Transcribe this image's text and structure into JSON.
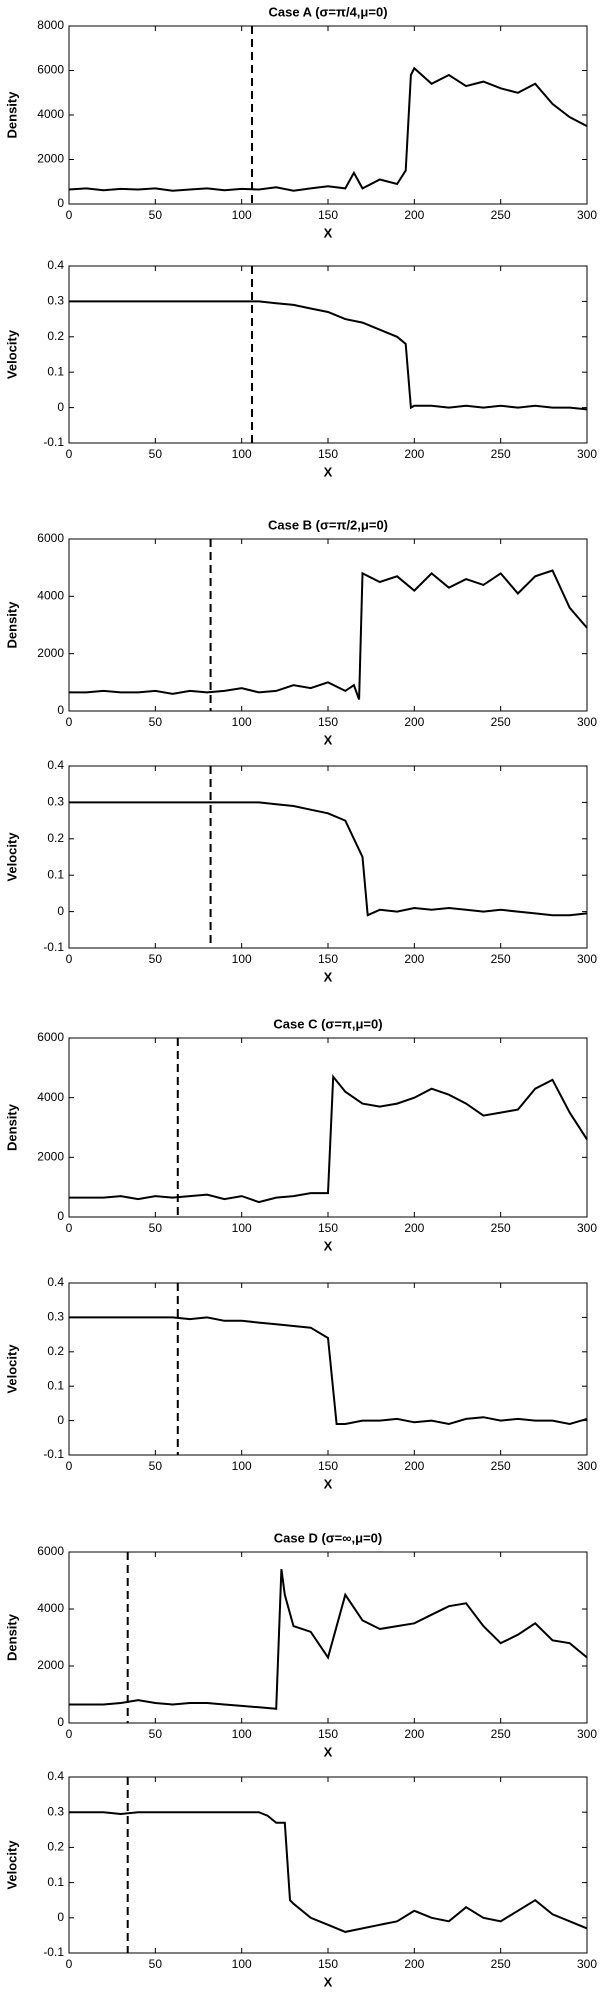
{
  "chart_data": [
    {
      "type": "line",
      "title": "Case A (σ=π/4,μ=0)",
      "xlabel": "X",
      "ylabel": "Density",
      "color": "#000000",
      "x": [
        0,
        10,
        20,
        30,
        40,
        50,
        60,
        70,
        80,
        90,
        100,
        110,
        120,
        130,
        140,
        150,
        160,
        165,
        170,
        180,
        190,
        195,
        198,
        200,
        210,
        220,
        230,
        240,
        250,
        260,
        270,
        280,
        290,
        300
      ],
      "values": [
        650,
        700,
        620,
        680,
        650,
        700,
        600,
        650,
        700,
        620,
        680,
        650,
        750,
        600,
        700,
        800,
        700,
        1400,
        700,
        1100,
        900,
        1500,
        5800,
        6100,
        5400,
        5800,
        5300,
        5500,
        5200,
        5000,
        5400,
        4500,
        3900,
        3500
      ],
      "vline_x": 106,
      "xlim": [
        0,
        300
      ],
      "xticks": [
        0,
        50,
        100,
        150,
        200,
        250,
        300
      ],
      "ylim": [
        0,
        8000
      ],
      "yticks": [
        0,
        2000,
        4000,
        6000,
        8000
      ]
    },
    {
      "type": "line",
      "xlabel": "X",
      "ylabel": "Velocity",
      "color": "#000000",
      "x": [
        0,
        10,
        20,
        30,
        40,
        50,
        60,
        70,
        80,
        90,
        100,
        110,
        120,
        130,
        140,
        150,
        160,
        170,
        180,
        190,
        195,
        198,
        200,
        210,
        220,
        230,
        240,
        250,
        260,
        270,
        280,
        290,
        300
      ],
      "values": [
        0.3,
        0.3,
        0.3,
        0.3,
        0.3,
        0.3,
        0.3,
        0.3,
        0.3,
        0.3,
        0.3,
        0.3,
        0.295,
        0.29,
        0.28,
        0.27,
        0.25,
        0.24,
        0.22,
        0.2,
        0.18,
        0.0,
        0.005,
        0.005,
        0.0,
        0.005,
        0.0,
        0.005,
        0.0,
        0.005,
        0.0,
        0.0,
        -0.005
      ],
      "vline_x": 106,
      "xlim": [
        0,
        300
      ],
      "xticks": [
        0,
        50,
        100,
        150,
        200,
        250,
        300
      ],
      "ylim": [
        -0.1,
        0.4
      ],
      "yticks": [
        -0.1,
        0,
        0.1,
        0.2,
        0.3,
        0.4
      ]
    },
    {
      "type": "line",
      "title": "Case B (σ=π/2,μ=0)",
      "xlabel": "X",
      "ylabel": "Density",
      "color": "#000000",
      "x": [
        0,
        10,
        20,
        30,
        40,
        50,
        60,
        70,
        80,
        90,
        100,
        110,
        120,
        130,
        140,
        150,
        160,
        165,
        168,
        170,
        180,
        190,
        200,
        210,
        220,
        230,
        240,
        250,
        260,
        270,
        280,
        290,
        300
      ],
      "values": [
        650,
        650,
        700,
        650,
        650,
        700,
        600,
        700,
        650,
        700,
        800,
        650,
        700,
        900,
        800,
        1000,
        700,
        900,
        400,
        4800,
        4500,
        4700,
        4200,
        4800,
        4300,
        4600,
        4400,
        4800,
        4100,
        4700,
        4900,
        3600,
        2900
      ],
      "vline_x": 82,
      "xlim": [
        0,
        300
      ],
      "xticks": [
        0,
        50,
        100,
        150,
        200,
        250,
        300
      ],
      "ylim": [
        0,
        6000
      ],
      "yticks": [
        0,
        2000,
        4000,
        6000
      ]
    },
    {
      "type": "line",
      "xlabel": "X",
      "ylabel": "Velocity",
      "color": "#000000",
      "x": [
        0,
        10,
        20,
        30,
        40,
        50,
        60,
        70,
        80,
        90,
        100,
        110,
        120,
        130,
        140,
        150,
        160,
        165,
        170,
        173,
        180,
        190,
        200,
        210,
        220,
        230,
        240,
        250,
        260,
        270,
        280,
        290,
        300
      ],
      "values": [
        0.3,
        0.3,
        0.3,
        0.3,
        0.3,
        0.3,
        0.3,
        0.3,
        0.3,
        0.3,
        0.3,
        0.3,
        0.295,
        0.29,
        0.28,
        0.27,
        0.25,
        0.2,
        0.15,
        -0.01,
        0.005,
        0.0,
        0.01,
        0.005,
        0.01,
        0.005,
        0.0,
        0.005,
        0.0,
        -0.005,
        -0.01,
        -0.01,
        -0.005
      ],
      "vline_x": 82,
      "xlim": [
        0,
        300
      ],
      "xticks": [
        0,
        50,
        100,
        150,
        200,
        250,
        300
      ],
      "ylim": [
        -0.1,
        0.4
      ],
      "yticks": [
        -0.1,
        0,
        0.1,
        0.2,
        0.3,
        0.4
      ]
    },
    {
      "type": "line",
      "title": "Case C (σ=π,μ=0)",
      "xlabel": "X",
      "ylabel": "Density",
      "color": "#000000",
      "x": [
        0,
        10,
        20,
        30,
        40,
        50,
        60,
        70,
        80,
        90,
        100,
        110,
        120,
        130,
        140,
        150,
        153,
        160,
        170,
        180,
        190,
        200,
        210,
        220,
        230,
        240,
        250,
        260,
        270,
        280,
        290,
        300
      ],
      "values": [
        650,
        650,
        650,
        700,
        600,
        700,
        650,
        700,
        750,
        600,
        700,
        500,
        650,
        700,
        800,
        800,
        4700,
        4200,
        3800,
        3700,
        3800,
        4000,
        4300,
        4100,
        3800,
        3400,
        3500,
        3600,
        4300,
        4600,
        3500,
        2600
      ],
      "vline_x": 63,
      "xlim": [
        0,
        300
      ],
      "xticks": [
        0,
        50,
        100,
        150,
        200,
        250,
        300
      ],
      "ylim": [
        0,
        6000
      ],
      "yticks": [
        0,
        2000,
        4000,
        6000
      ]
    },
    {
      "type": "line",
      "xlabel": "X",
      "ylabel": "Velocity",
      "color": "#000000",
      "x": [
        0,
        10,
        20,
        30,
        40,
        50,
        60,
        70,
        80,
        90,
        100,
        110,
        120,
        130,
        140,
        150,
        155,
        160,
        170,
        180,
        190,
        200,
        210,
        220,
        230,
        240,
        250,
        260,
        270,
        280,
        290,
        300
      ],
      "values": [
        0.3,
        0.3,
        0.3,
        0.3,
        0.3,
        0.3,
        0.3,
        0.295,
        0.3,
        0.29,
        0.29,
        0.285,
        0.28,
        0.275,
        0.27,
        0.24,
        -0.01,
        -0.01,
        0.0,
        0.0,
        0.005,
        -0.005,
        0.0,
        -0.01,
        0.005,
        0.01,
        0.0,
        0.005,
        0.0,
        0.0,
        -0.01,
        0.005
      ],
      "vline_x": 63,
      "xlim": [
        0,
        300
      ],
      "xticks": [
        0,
        50,
        100,
        150,
        200,
        250,
        300
      ],
      "ylim": [
        -0.1,
        0.4
      ],
      "yticks": [
        -0.1,
        0,
        0.1,
        0.2,
        0.3,
        0.4
      ]
    },
    {
      "type": "line",
      "title": "Case D (σ=∞,μ=0)",
      "xlabel": "X",
      "ylabel": "Density",
      "color": "#000000",
      "x": [
        0,
        10,
        20,
        30,
        40,
        50,
        60,
        70,
        80,
        90,
        100,
        110,
        120,
        123,
        125,
        130,
        140,
        150,
        160,
        170,
        180,
        190,
        200,
        210,
        220,
        230,
        240,
        250,
        260,
        270,
        280,
        290,
        300
      ],
      "values": [
        650,
        650,
        650,
        700,
        800,
        700,
        650,
        700,
        700,
        650,
        600,
        550,
        500,
        5400,
        4500,
        3400,
        3200,
        2300,
        4500,
        3600,
        3300,
        3400,
        3500,
        3800,
        4100,
        4200,
        3400,
        2800,
        3100,
        3500,
        2900,
        2800,
        2300
      ],
      "vline_x": 34,
      "xlim": [
        0,
        300
      ],
      "xticks": [
        0,
        50,
        100,
        150,
        200,
        250,
        300
      ],
      "ylim": [
        0,
        6000
      ],
      "yticks": [
        0,
        2000,
        4000,
        6000
      ]
    },
    {
      "type": "line",
      "xlabel": "X",
      "ylabel": "Velocity",
      "color": "#000000",
      "x": [
        0,
        10,
        20,
        30,
        40,
        50,
        60,
        70,
        80,
        90,
        100,
        110,
        115,
        120,
        125,
        128,
        130,
        140,
        150,
        160,
        170,
        180,
        190,
        200,
        210,
        220,
        230,
        240,
        250,
        260,
        270,
        280,
        290,
        300
      ],
      "values": [
        0.3,
        0.3,
        0.3,
        0.295,
        0.3,
        0.3,
        0.3,
        0.3,
        0.3,
        0.3,
        0.3,
        0.3,
        0.29,
        0.27,
        0.27,
        0.05,
        0.04,
        0.0,
        -0.02,
        -0.04,
        -0.03,
        -0.02,
        -0.01,
        0.02,
        0.0,
        -0.01,
        0.03,
        0.0,
        -0.01,
        0.02,
        0.05,
        0.01,
        -0.01,
        -0.03
      ],
      "vline_x": 34,
      "xlim": [
        0,
        300
      ],
      "xticks": [
        0,
        50,
        100,
        150,
        200,
        250,
        300
      ],
      "ylim": [
        -0.1,
        0.4
      ],
      "yticks": [
        -0.1,
        0,
        0.1,
        0.2,
        0.3,
        0.4
      ]
    }
  ]
}
